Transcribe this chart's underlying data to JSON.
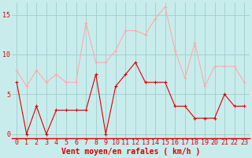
{
  "x": [
    0,
    1,
    2,
    3,
    4,
    5,
    6,
    7,
    8,
    9,
    10,
    11,
    12,
    13,
    14,
    15,
    16,
    17,
    18,
    19,
    20,
    21,
    22,
    23
  ],
  "mean_wind": [
    6.5,
    0.0,
    3.5,
    0.0,
    3.0,
    3.0,
    3.0,
    3.0,
    7.5,
    0.0,
    6.0,
    7.5,
    9.0,
    6.5,
    6.5,
    6.5,
    3.5,
    3.5,
    2.0,
    2.0,
    2.0,
    5.0,
    3.5,
    3.5
  ],
  "gusts": [
    8.0,
    6.0,
    8.0,
    6.5,
    7.5,
    6.5,
    6.5,
    14.0,
    9.0,
    9.0,
    10.5,
    13.0,
    13.0,
    12.5,
    14.5,
    16.0,
    10.5,
    7.0,
    11.5,
    6.0,
    8.5,
    8.5,
    8.5,
    6.5
  ],
  "mean_color": "#dd0000",
  "gust_color": "#ffaaaa",
  "bg_color": "#c8ecec",
  "grid_color": "#a0cccc",
  "axis_color": "#dd0000",
  "xlabel": "Vent moyen/en rafales ( km/h )",
  "yticks": [
    0,
    5,
    10,
    15
  ],
  "ylim": [
    -0.5,
    16.5
  ],
  "xlim": [
    -0.5,
    23.5
  ],
  "xlabel_fontsize": 7,
  "tick_fontsize": 6
}
